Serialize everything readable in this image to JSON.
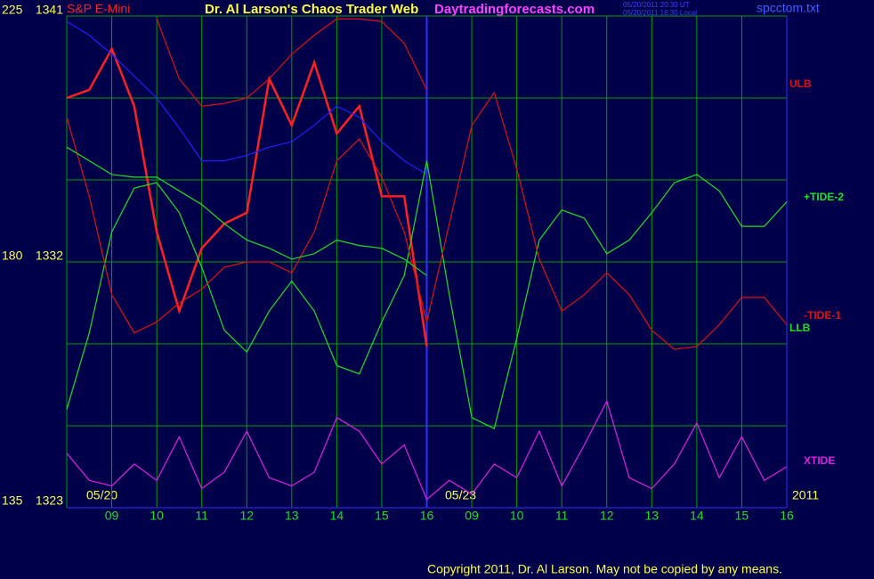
{
  "chart_data": {
    "type": "line",
    "subtitle": "S&P E-Mini",
    "title": "Dr. Al Larson's Chaos Trader Web",
    "site": "Daytradingforecasts.com",
    "timestamps": [
      "05/20/2011 20:30 UT",
      "05/20/2011 16:30 Local"
    ],
    "file": "spcctom.txt",
    "copyright": "Copyright 2011, Dr. Al Larson. May not be copied by any means.",
    "date_labels": [
      "05/20",
      "05/23",
      "2011"
    ],
    "grid": true,
    "xlim": [
      0,
      16
    ],
    "xticks": [
      {
        "value": 1,
        "label": "09"
      },
      {
        "value": 2,
        "label": "10"
      },
      {
        "value": 3,
        "label": "11"
      },
      {
        "value": 4,
        "label": "12"
      },
      {
        "value": 5,
        "label": "13"
      },
      {
        "value": 6,
        "label": "14"
      },
      {
        "value": 7,
        "label": "15"
      },
      {
        "value": 8,
        "label": "16"
      },
      {
        "value": 9,
        "label": "09"
      },
      {
        "value": 10,
        "label": "10"
      },
      {
        "value": 11,
        "label": "11"
      },
      {
        "value": 12,
        "label": "12"
      },
      {
        "value": 13,
        "label": "13"
      },
      {
        "value": 14,
        "label": "14"
      },
      {
        "value": 15,
        "label": "15"
      },
      {
        "value": 16,
        "label": "16"
      }
    ],
    "ylim": [
      1323,
      1341
    ],
    "yticks": [
      1323,
      1332,
      1341
    ],
    "y_minor_ticks": [
      1326,
      1329,
      1335,
      1338
    ],
    "y2lim": [
      135,
      225
    ],
    "y2ticks": [
      135,
      180,
      225
    ],
    "x": [
      0,
      0.5,
      1,
      1.5,
      2,
      2.5,
      3,
      3.5,
      4,
      4.5,
      5,
      5.5,
      6,
      6.5,
      7,
      7.5,
      8,
      8.5,
      9,
      9.5,
      10,
      10.5,
      11,
      11.5,
      12,
      12.5,
      13,
      13.5,
      14,
      14.5,
      15,
      15.5,
      16
    ],
    "series": [
      {
        "color": "#ff2020",
        "values": [
          1338.0,
          1338.3,
          1339.8,
          1337.7,
          1333.1,
          1330.2,
          1332.5,
          1333.4,
          1333.8,
          1338.7,
          1337.0,
          1339.3,
          1336.7,
          1337.7,
          1334.4,
          1334.4,
          1328.9,
          null,
          null,
          null,
          null,
          null,
          null,
          null,
          null,
          null,
          null,
          null,
          null,
          null,
          null,
          null,
          null
        ]
      },
      {
        "color": "#2020ff",
        "values": [
          1340.8,
          1340.3,
          1339.6,
          1338.8,
          1338.0,
          1336.9,
          1335.7,
          1335.7,
          1335.9,
          1336.2,
          1336.4,
          1337.0,
          1337.7,
          1337.3,
          1336.4,
          1335.7,
          1335.2,
          null,
          null,
          null,
          null,
          null,
          null,
          null,
          null,
          null,
          null,
          null,
          null,
          null,
          null,
          null,
          null
        ]
      },
      {
        "name": "ULB",
        "color": "#e01010",
        "values": [
          null,
          null,
          null,
          null,
          1340.9,
          1338.7,
          1337.7,
          1337.8,
          1338.0,
          1338.7,
          1339.6,
          1340.3,
          1340.9,
          1340.9,
          1340.8,
          1340.0,
          1338.3,
          null,
          null,
          null,
          null,
          null,
          null,
          null,
          null,
          null,
          null,
          null,
          null,
          null,
          null,
          null,
          null
        ]
      },
      {
        "name": "+TIDE-2",
        "color": "#20e020",
        "values": [
          1326.6,
          1329.4,
          1333.1,
          1334.7,
          1334.9,
          1333.8,
          1331.8,
          1329.5,
          1328.7,
          1330.2,
          1331.3,
          1330.2,
          1328.2,
          1327.9,
          1329.8,
          1331.5,
          1335.7,
          1330.8,
          1326.3,
          1325.9,
          1329.2,
          1332.8,
          1333.9,
          1333.6,
          1332.3,
          1332.8,
          1333.8,
          1334.9,
          1335.2,
          1334.6,
          1333.3,
          1333.3,
          1334.2
        ]
      },
      {
        "name": "-TIDE-1",
        "color": "#e01010",
        "values": [
          1337.3,
          1334.4,
          1330.8,
          1329.4,
          1329.8,
          1330.5,
          1331.0,
          1331.8,
          1332.0,
          1332.0,
          1331.6,
          1333.1,
          1335.7,
          1336.5,
          1335.1,
          1333.1,
          1329.8,
          1333.4,
          1337.0,
          1338.2,
          1335.4,
          1332.1,
          1330.2,
          1330.8,
          1331.6,
          1330.8,
          1329.5,
          1328.8,
          1328.9,
          1329.7,
          1330.7,
          1330.7,
          1329.7
        ]
      },
      {
        "name": "LLB",
        "color": "#20e020",
        "values": [
          1336.2,
          1335.7,
          1335.2,
          1335.1,
          1335.1,
          1334.6,
          1334.1,
          1333.4,
          1332.8,
          1332.5,
          1332.1,
          1332.3,
          1332.8,
          1332.6,
          1332.5,
          1332.1,
          1331.5,
          null,
          null,
          null,
          null,
          null,
          null,
          null,
          null,
          null,
          null,
          null,
          null,
          null,
          null,
          null,
          null
        ]
      },
      {
        "name": "XTIDE",
        "color": "#e020e0",
        "values": [
          1325.0,
          1324.0,
          1323.8,
          1324.6,
          1324.0,
          1325.6,
          1323.7,
          1324.3,
          1325.8,
          1324.1,
          1323.8,
          1324.3,
          1326.3,
          1325.8,
          1324.6,
          1325.3,
          1323.3,
          1324.0,
          1323.5,
          1324.6,
          1324.1,
          1325.8,
          1323.8,
          1325.3,
          1326.9,
          1324.1,
          1323.7,
          1324.6,
          1326.1,
          1324.1,
          1325.6,
          1324.0,
          1324.5
        ]
      }
    ]
  }
}
